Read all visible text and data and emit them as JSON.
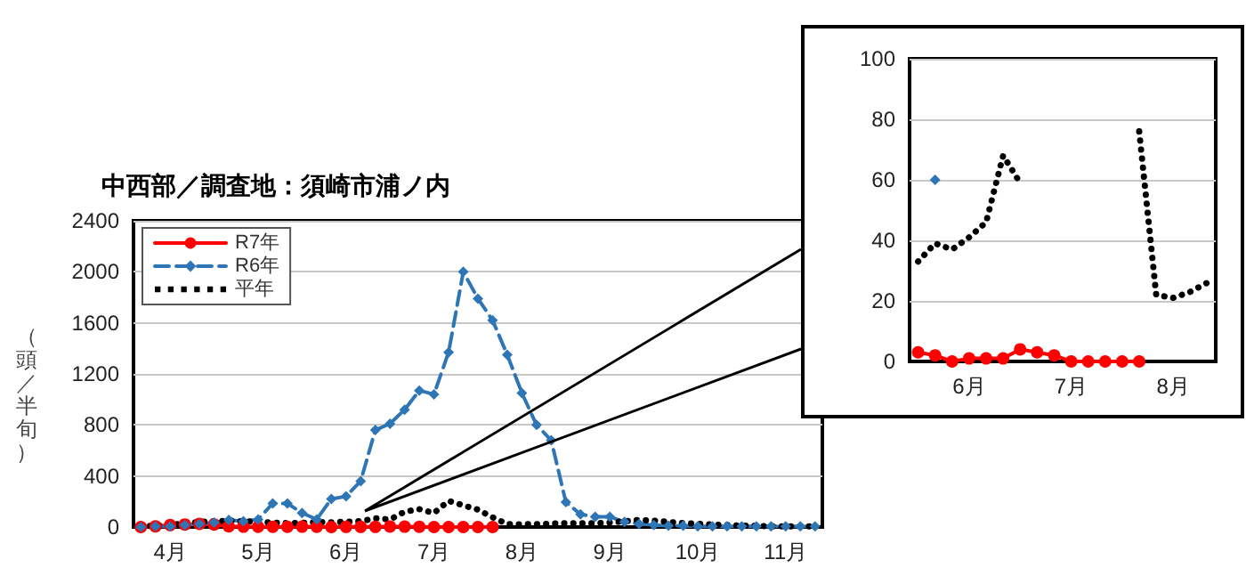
{
  "chart_data": [
    {
      "type": "line",
      "title": "中西部／調査地：須崎市浦ノ内",
      "ylabel": "（頭／半旬）",
      "categories": [
        null,
        null,
        "4月",
        null,
        null,
        null,
        null,
        null,
        "5月",
        null,
        null,
        null,
        null,
        null,
        "6月",
        null,
        null,
        null,
        null,
        null,
        "7月",
        null,
        null,
        null,
        null,
        null,
        "8月",
        null,
        null,
        null,
        null,
        null,
        "9月",
        null,
        null,
        null,
        null,
        null,
        "10月",
        null,
        null,
        null,
        null,
        null,
        "11月",
        null,
        null
      ],
      "series": [
        {
          "name": "R7年",
          "color": "#ff0000",
          "line_style": "solid",
          "marker": "circle",
          "values": [
            0,
            5,
            15,
            20,
            25,
            20,
            5,
            3,
            2,
            2,
            2,
            3,
            2,
            0,
            1,
            1,
            1,
            4,
            3,
            2,
            0,
            0,
            0,
            0,
            0,
            null,
            null,
            null,
            null,
            null,
            null,
            null,
            null,
            null,
            null,
            null,
            null,
            null,
            null,
            null,
            null,
            null,
            null,
            null,
            null,
            null,
            null
          ]
        },
        {
          "name": "R6年",
          "color": "#2e75b6",
          "line_style": "dashed",
          "marker": "diamond",
          "values": [
            0,
            5,
            5,
            15,
            25,
            35,
            55,
            45,
            60,
            185,
            185,
            110,
            60,
            220,
            240,
            360,
            760,
            810,
            920,
            1070,
            1040,
            1370,
            2000,
            1790,
            1620,
            1350,
            1050,
            800,
            680,
            195,
            100,
            80,
            80,
            40,
            25,
            15,
            10,
            10,
            5,
            5,
            5,
            5,
            5,
            5,
            5,
            5,
            5
          ]
        },
        {
          "name": "平年",
          "color": "#000000",
          "line_style": "dotted",
          "marker": "none",
          "values": [
            5,
            10,
            20,
            25,
            40,
            45,
            50,
            45,
            40,
            35,
            30,
            33,
            39,
            37,
            41,
            46,
            68,
            59,
            120,
            140,
            110,
            205,
            170,
            136,
            76,
            22,
            21,
            23,
            26,
            30,
            30,
            30,
            35,
            45,
            55,
            50,
            40,
            30,
            25,
            20,
            15,
            10,
            10,
            5,
            5,
            5,
            5
          ]
        }
      ],
      "ylim": [
        0,
        2400
      ],
      "yticks": [
        0,
        400,
        800,
        1200,
        1600,
        2000,
        2400
      ],
      "grid": "y",
      "legend": "top left"
    },
    {
      "type": "line",
      "categories": [
        null,
        null,
        null,
        "6月",
        null,
        null,
        null,
        null,
        null,
        "7月",
        null,
        null,
        null,
        null,
        null,
        "8月",
        null,
        null
      ],
      "series": [
        {
          "color": "#ff0000",
          "line_style": "solid",
          "marker": "circle",
          "values": [
            3,
            2,
            0,
            1,
            1,
            1,
            4,
            3,
            2,
            0,
            0,
            0,
            0,
            0,
            null,
            null,
            null,
            null
          ]
        },
        {
          "color": "#2e75b6",
          "line_style": "dashed",
          "marker": "diamond",
          "values": [
            null,
            60,
            null,
            null,
            null,
            null,
            null,
            null,
            null,
            null,
            null,
            null,
            null,
            null,
            null,
            null,
            null,
            null
          ]
        },
        {
          "color": "#000000",
          "line_style": "dotted",
          "marker": "none",
          "values": [
            33,
            39,
            37,
            41,
            46,
            68,
            59,
            null,
            null,
            null,
            null,
            null,
            null,
            76,
            22,
            21,
            23,
            26
          ]
        }
      ],
      "ylim": [
        0,
        100
      ],
      "yticks": [
        0,
        20,
        40,
        60,
        80,
        100
      ],
      "grid": "y"
    }
  ]
}
